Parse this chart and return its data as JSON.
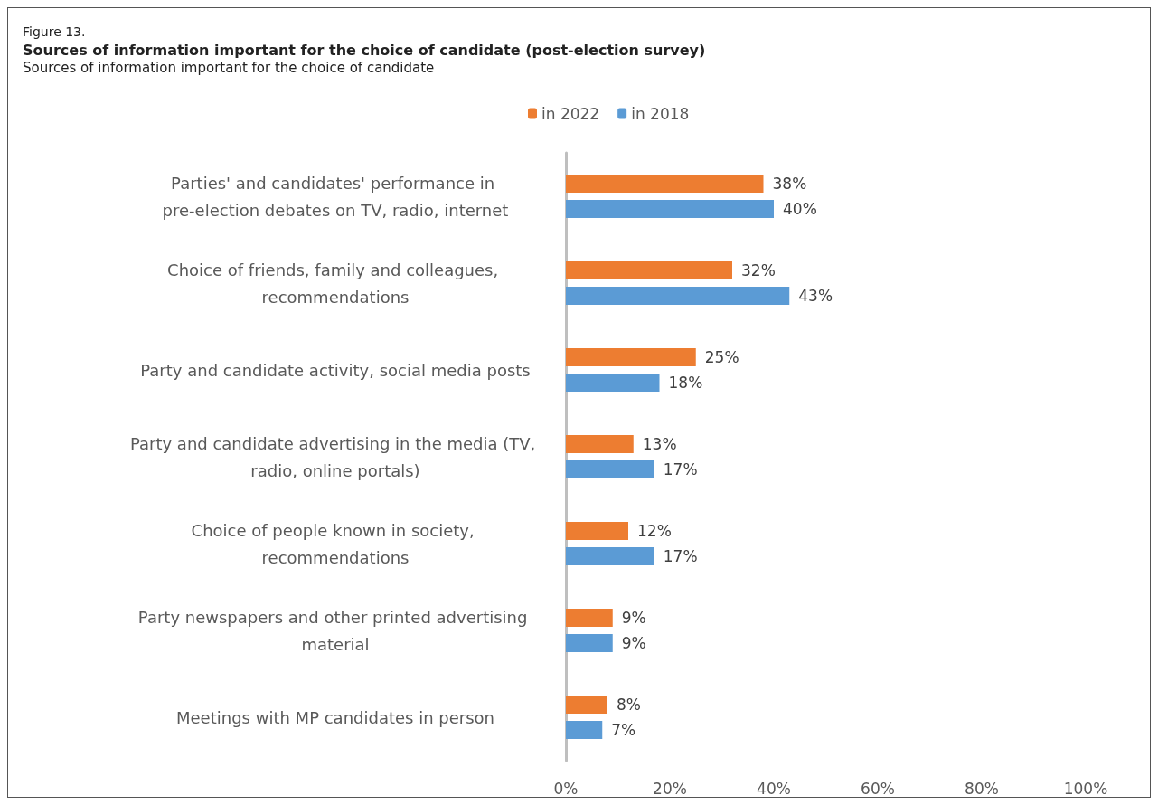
{
  "chart_data": {
    "type": "bar",
    "orientation": "horizontal",
    "title": "Sources of information important for the choice of candidate (post-election survey)",
    "subtitle": "Sources of information important for the choice of candidate",
    "annotations": [
      "Figure 13."
    ],
    "categories": [
      "Parties' and candidates' performance in pre-election debates on TV, radio, internet",
      "Choice of friends, family and colleagues, recommendations",
      "Party and candidate activity, social media posts",
      "Party and candidate advertising in the media (TV, radio, online portals)",
      "Choice of people known in society, recommendations",
      "Party newspapers and other printed advertising material",
      "Meetings with MP candidates in person"
    ],
    "series": [
      {
        "name": "in 2022",
        "color": "#ed7d31",
        "values": [
          38,
          32,
          25,
          13,
          12,
          9,
          8
        ],
        "value_labels": [
          "38%",
          "32%",
          "25%",
          "13%",
          "12%",
          "9%",
          "8%"
        ]
      },
      {
        "name": "in 2018",
        "color": "#5b9bd5",
        "values": [
          40,
          43,
          18,
          17,
          17,
          9,
          7
        ],
        "value_labels": [
          "40%",
          "43%",
          "18%",
          "17%",
          "17%",
          "9%",
          "7%"
        ]
      }
    ],
    "xlim": [
      0,
      100
    ],
    "xticks": [
      {
        "value": 0,
        "label": "0%"
      },
      {
        "value": 20,
        "label": "20%"
      },
      {
        "value": 40,
        "label": "40%"
      },
      {
        "value": 60,
        "label": "60%"
      },
      {
        "value": 80,
        "label": "80%"
      },
      {
        "value": 100,
        "label": "100%"
      }
    ],
    "grid": false,
    "legend": "top"
  }
}
